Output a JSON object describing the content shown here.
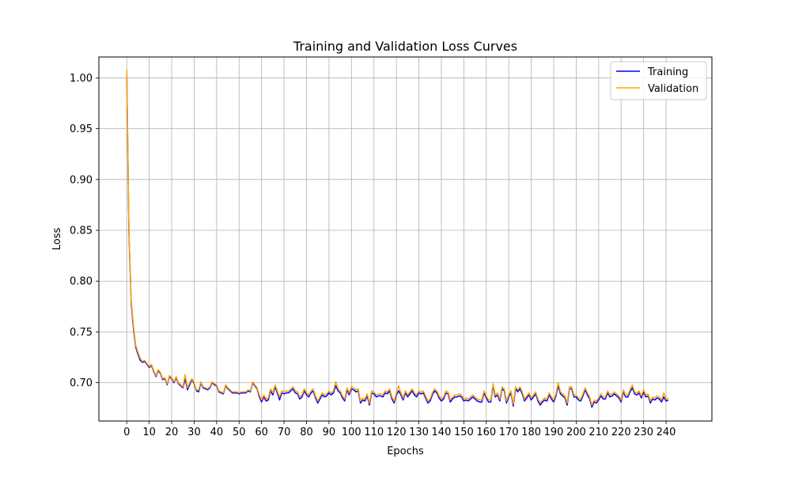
{
  "chart_data": {
    "type": "line",
    "title": "Training and Validation Loss Curves",
    "xlabel": "Epochs",
    "ylabel": "Loss",
    "xlim": [
      -12.4,
      260.4
    ],
    "ylim": [
      0.6623,
      1.0206
    ],
    "x_ticks": [
      0,
      10,
      20,
      30,
      40,
      50,
      60,
      70,
      80,
      90,
      100,
      110,
      120,
      130,
      140,
      150,
      160,
      170,
      180,
      190,
      200,
      210,
      220,
      230,
      240
    ],
    "y_ticks": [
      0.7,
      0.75,
      0.8,
      0.85,
      0.9,
      0.95,
      1.0
    ],
    "grid": true,
    "legend": "top-right",
    "series": [
      {
        "name": "Training",
        "color": "#0000ff",
        "x_start": 0,
        "x_step": 1,
        "values": [
          1.007,
          0.845,
          0.778,
          0.753,
          0.735,
          0.728,
          0.722,
          0.72,
          0.721,
          0.718,
          0.715,
          0.717,
          0.711,
          0.706,
          0.712,
          0.709,
          0.703,
          0.704,
          0.698,
          0.706,
          0.704,
          0.7,
          0.705,
          0.699,
          0.697,
          0.695,
          0.704,
          0.693,
          0.698,
          0.703,
          0.699,
          0.692,
          0.691,
          0.7,
          0.695,
          0.694,
          0.693,
          0.695,
          0.7,
          0.698,
          0.697,
          0.691,
          0.69,
          0.689,
          0.697,
          0.694,
          0.692,
          0.69,
          0.69,
          0.69,
          0.689,
          0.69,
          0.69,
          0.69,
          0.692,
          0.691,
          0.7,
          0.697,
          0.694,
          0.686,
          0.681,
          0.686,
          0.682,
          0.683,
          0.692,
          0.688,
          0.696,
          0.69,
          0.683,
          0.69,
          0.689,
          0.69,
          0.69,
          0.692,
          0.694,
          0.69,
          0.689,
          0.684,
          0.686,
          0.692,
          0.688,
          0.686,
          0.69,
          0.692,
          0.685,
          0.68,
          0.684,
          0.688,
          0.686,
          0.687,
          0.69,
          0.688,
          0.69,
          0.697,
          0.692,
          0.69,
          0.685,
          0.682,
          0.693,
          0.688,
          0.694,
          0.693,
          0.691,
          0.692,
          0.68,
          0.683,
          0.682,
          0.687,
          0.678,
          0.69,
          0.689,
          0.686,
          0.687,
          0.687,
          0.686,
          0.69,
          0.689,
          0.692,
          0.684,
          0.68,
          0.688,
          0.692,
          0.688,
          0.683,
          0.69,
          0.686,
          0.689,
          0.692,
          0.688,
          0.686,
          0.69,
          0.689,
          0.69,
          0.685,
          0.68,
          0.682,
          0.688,
          0.692,
          0.69,
          0.685,
          0.682,
          0.684,
          0.69,
          0.689,
          0.681,
          0.684,
          0.686,
          0.686,
          0.687,
          0.686,
          0.682,
          0.683,
          0.682,
          0.684,
          0.686,
          0.684,
          0.682,
          0.681,
          0.681,
          0.69,
          0.685,
          0.681,
          0.681,
          0.697,
          0.686,
          0.688,
          0.682,
          0.694,
          0.692,
          0.68,
          0.686,
          0.69,
          0.677,
          0.694,
          0.691,
          0.694,
          0.689,
          0.682,
          0.685,
          0.688,
          0.683,
          0.686,
          0.689,
          0.682,
          0.678,
          0.681,
          0.683,
          0.682,
          0.688,
          0.684,
          0.681,
          0.687,
          0.697,
          0.689,
          0.687,
          0.685,
          0.678,
          0.694,
          0.694,
          0.686,
          0.686,
          0.683,
          0.682,
          0.687,
          0.693,
          0.688,
          0.684,
          0.676,
          0.681,
          0.68,
          0.683,
          0.687,
          0.684,
          0.684,
          0.69,
          0.686,
          0.687,
          0.689,
          0.687,
          0.685,
          0.681,
          0.691,
          0.686,
          0.686,
          0.691,
          0.695,
          0.689,
          0.688,
          0.69,
          0.685,
          0.691,
          0.686,
          0.687,
          0.68,
          0.684,
          0.683,
          0.685,
          0.684,
          0.681,
          0.686,
          0.682,
          0.683
        ]
      },
      {
        "name": "Validation",
        "color": "#ffa500",
        "x_start": 0,
        "x_step": 1,
        "values": [
          1.008,
          0.848,
          0.781,
          0.756,
          0.737,
          0.73,
          0.724,
          0.721,
          0.722,
          0.719,
          0.716,
          0.718,
          0.712,
          0.707,
          0.713,
          0.71,
          0.704,
          0.705,
          0.699,
          0.707,
          0.705,
          0.701,
          0.706,
          0.7,
          0.698,
          0.696,
          0.708,
          0.695,
          0.7,
          0.704,
          0.7,
          0.693,
          0.693,
          0.701,
          0.696,
          0.695,
          0.694,
          0.696,
          0.701,
          0.699,
          0.698,
          0.692,
          0.691,
          0.69,
          0.698,
          0.695,
          0.693,
          0.691,
          0.691,
          0.691,
          0.69,
          0.691,
          0.691,
          0.691,
          0.693,
          0.692,
          0.701,
          0.698,
          0.695,
          0.688,
          0.683,
          0.688,
          0.684,
          0.685,
          0.694,
          0.69,
          0.698,
          0.692,
          0.686,
          0.692,
          0.691,
          0.692,
          0.692,
          0.694,
          0.696,
          0.692,
          0.691,
          0.686,
          0.688,
          0.694,
          0.69,
          0.688,
          0.692,
          0.694,
          0.687,
          0.682,
          0.686,
          0.69,
          0.688,
          0.689,
          0.692,
          0.69,
          0.692,
          0.701,
          0.694,
          0.692,
          0.687,
          0.684,
          0.695,
          0.69,
          0.696,
          0.695,
          0.693,
          0.694,
          0.682,
          0.685,
          0.684,
          0.689,
          0.68,
          0.692,
          0.691,
          0.688,
          0.689,
          0.689,
          0.688,
          0.692,
          0.691,
          0.694,
          0.686,
          0.682,
          0.69,
          0.697,
          0.69,
          0.685,
          0.692,
          0.688,
          0.691,
          0.694,
          0.69,
          0.688,
          0.692,
          0.691,
          0.692,
          0.687,
          0.682,
          0.684,
          0.69,
          0.694,
          0.692,
          0.687,
          0.684,
          0.686,
          0.692,
          0.691,
          0.683,
          0.686,
          0.688,
          0.688,
          0.689,
          0.688,
          0.684,
          0.685,
          0.684,
          0.686,
          0.688,
          0.686,
          0.684,
          0.683,
          0.683,
          0.692,
          0.687,
          0.683,
          0.683,
          0.699,
          0.688,
          0.69,
          0.684,
          0.696,
          0.694,
          0.682,
          0.688,
          0.692,
          0.679,
          0.696,
          0.693,
          0.696,
          0.691,
          0.684,
          0.687,
          0.69,
          0.685,
          0.688,
          0.691,
          0.684,
          0.68,
          0.683,
          0.685,
          0.684,
          0.69,
          0.686,
          0.683,
          0.689,
          0.7,
          0.691,
          0.689,
          0.687,
          0.68,
          0.696,
          0.696,
          0.688,
          0.688,
          0.685,
          0.684,
          0.689,
          0.695,
          0.69,
          0.686,
          0.678,
          0.683,
          0.682,
          0.685,
          0.689,
          0.686,
          0.686,
          0.692,
          0.688,
          0.689,
          0.691,
          0.689,
          0.687,
          0.683,
          0.693,
          0.688,
          0.688,
          0.693,
          0.698,
          0.691,
          0.69,
          0.692,
          0.687,
          0.693,
          0.688,
          0.689,
          0.682,
          0.686,
          0.685,
          0.687,
          0.686,
          0.683,
          0.69,
          0.684,
          0.685
        ]
      }
    ]
  }
}
